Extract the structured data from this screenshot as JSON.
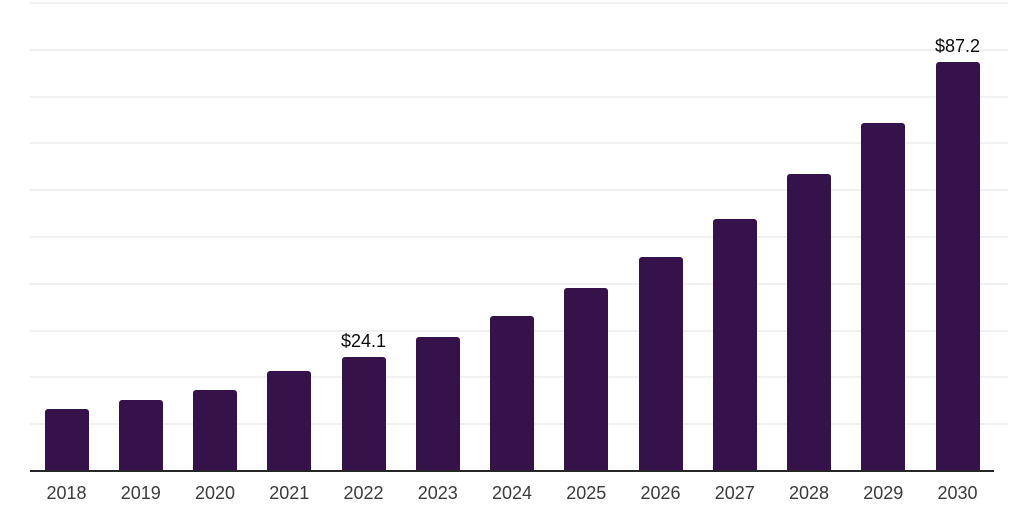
{
  "chart_data": {
    "type": "bar",
    "categories": [
      "2018",
      "2019",
      "2020",
      "2021",
      "2022",
      "2023",
      "2024",
      "2025",
      "2026",
      "2027",
      "2028",
      "2029",
      "2030"
    ],
    "values": [
      13.0,
      14.9,
      17.2,
      21.1,
      24.1,
      28.5,
      33.0,
      38.8,
      45.6,
      53.7,
      63.3,
      74.2,
      87.2
    ],
    "data_labels": [
      null,
      null,
      null,
      null,
      "$24.1",
      null,
      null,
      null,
      null,
      null,
      null,
      null,
      "$87.2"
    ],
    "value_prefix": "$",
    "ylim": [
      0,
      100
    ],
    "gridline_step": 10,
    "grid": "horizontal-only",
    "y_axis_tick_labels_visible": false,
    "legend": "none",
    "colors": {
      "bar": "#35134A",
      "axis_line": "#262626",
      "gridline": "#f1f1f1",
      "tick_label": "#3b3b3b",
      "data_label": "#0b0b0b",
      "background": "#ffffff"
    }
  }
}
